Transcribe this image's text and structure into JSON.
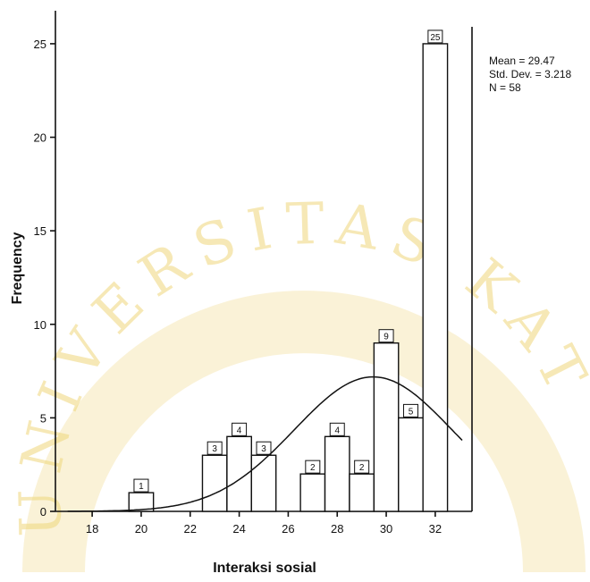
{
  "chart_data": {
    "type": "bar",
    "xlabel": "Interaksi sosial",
    "ylabel": "Frequency",
    "xlim": [
      16.5,
      33.5
    ],
    "ylim": [
      0,
      26
    ],
    "xticks": [
      18,
      20,
      22,
      24,
      26,
      28,
      30,
      32
    ],
    "yticks": [
      0,
      5,
      10,
      15,
      20,
      25
    ],
    "ytick_labels": [
      "0",
      "5",
      "10",
      "15",
      "20",
      "25"
    ],
    "bars": [
      {
        "x": 20,
        "value": 1
      },
      {
        "x": 23,
        "value": 3
      },
      {
        "x": 24,
        "value": 4
      },
      {
        "x": 25,
        "value": 3
      },
      {
        "x": 27,
        "value": 2
      },
      {
        "x": 28,
        "value": 4
      },
      {
        "x": 29,
        "value": 2
      },
      {
        "x": 30,
        "value": 9
      },
      {
        "x": 31,
        "value": 5
      },
      {
        "x": 32,
        "value": 25
      }
    ],
    "normal_curve": true,
    "stats": {
      "mean_label": "Mean = 29.47",
      "sd_label": "Std. Dev. = 3.218",
      "n_label": "N = 58"
    },
    "grid": false
  },
  "watermark": {
    "arc_text": "UNIVERSITAS KAT",
    "color": "#efd77c"
  }
}
